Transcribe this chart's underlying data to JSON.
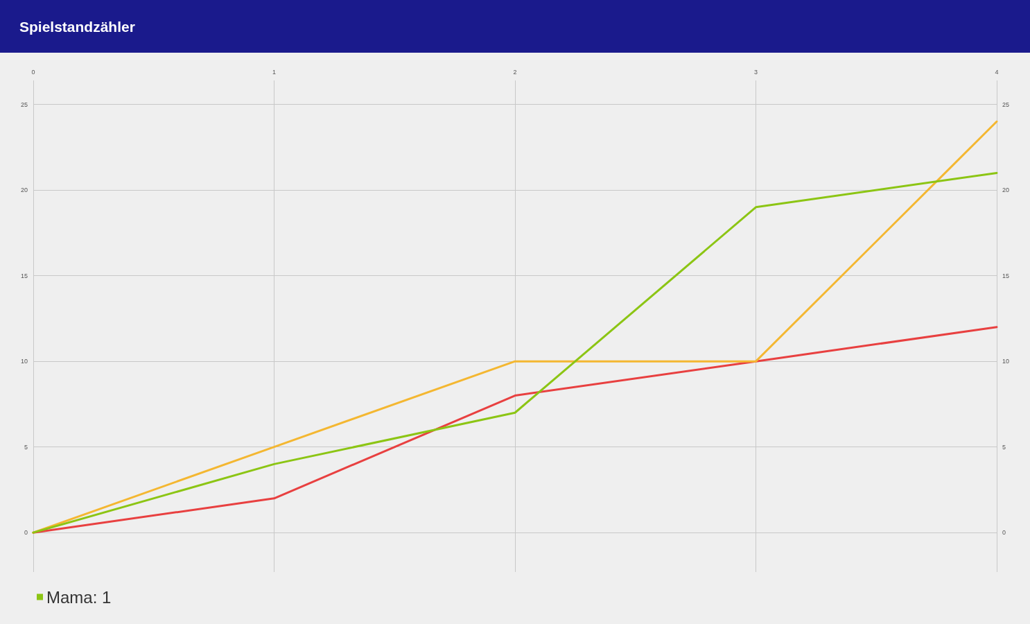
{
  "chart_data": {
    "type": "line",
    "title": "Spielstandzähler",
    "x": [
      0,
      1,
      2,
      3,
      4
    ],
    "xlim": [
      0,
      4
    ],
    "xticks": [
      0,
      1,
      2,
      3,
      4
    ],
    "ylim": [
      -2.3,
      26.4
    ],
    "yticks": [
      0,
      5,
      10,
      15,
      20,
      25
    ],
    "y2lim": [
      -2.3,
      26.4
    ],
    "y2ticks": [
      0,
      5,
      10,
      15,
      20,
      25
    ],
    "series": [
      {
        "color": "#e84040",
        "values": [
          0,
          2,
          8,
          10,
          12
        ]
      },
      {
        "color": "#f4b731",
        "values": [
          0,
          5,
          10,
          10,
          24
        ]
      },
      {
        "name": "Mama: 1",
        "color": "#8cc514",
        "values": [
          0,
          4,
          7,
          19,
          21
        ]
      }
    ],
    "grid": true,
    "legend": "bottom left",
    "marker": "none",
    "line_style": "solid"
  }
}
